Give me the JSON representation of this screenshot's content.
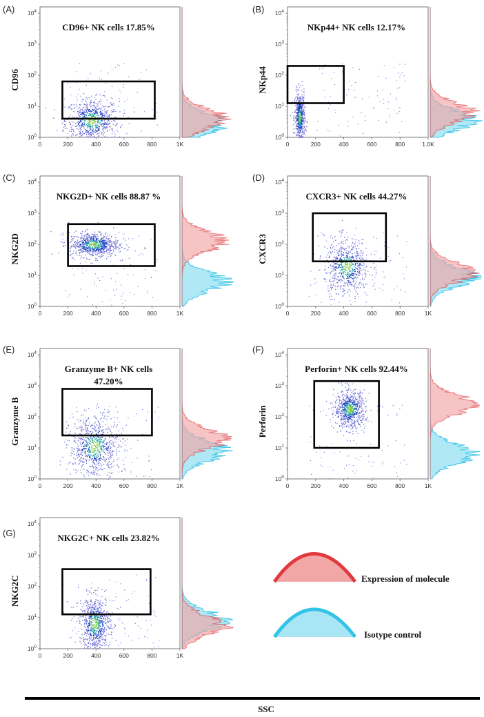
{
  "chart_data": [
    {
      "type": "scatter",
      "panel": "(A)",
      "ylabel": "CD96",
      "gate_label": "CD96+  NK cells 17.85%",
      "percent_positive": 17.85,
      "x_ticks": [
        "0",
        "200",
        "400",
        "600",
        "800",
        "1K"
      ],
      "y_ticks": [
        0,
        1,
        2,
        3,
        4
      ],
      "xlim": [
        0,
        1000
      ],
      "ylim_log10": [
        0,
        4.2
      ],
      "gate": {
        "x": [
          160,
          820
        ],
        "y_log10": [
          0.6,
          1.8
        ]
      },
      "cluster": {
        "x_center": 370,
        "x_spread": 95,
        "y_center_log10": 0.55,
        "y_spread": 0.35,
        "n": 700
      },
      "histogram": {
        "expression_peak_log10": 0.6,
        "isotype_peak_log10": 0.45
      }
    },
    {
      "type": "scatter",
      "panel": "(B)",
      "ylabel": "NKp44",
      "gate_label": "NKp44+ NK cells 12.17%",
      "percent_positive": 12.17,
      "x_ticks": [
        "0",
        "200",
        "400",
        "600",
        "800",
        "1.0K"
      ],
      "y_ticks": [
        0,
        1,
        2,
        3,
        4
      ],
      "xlim": [
        0,
        1000
      ],
      "ylim_log10": [
        0,
        4.2
      ],
      "gate": {
        "x": [
          0,
          400
        ],
        "y_log10": [
          1.1,
          2.3
        ]
      },
      "cluster": {
        "x_center": 85,
        "x_spread": 18,
        "y_center_log10": 0.65,
        "y_spread": 0.4,
        "n": 600
      },
      "histogram": {
        "expression_peak_log10": 0.8,
        "isotype_peak_log10": 0.55
      }
    },
    {
      "type": "scatter",
      "panel": "(C)",
      "ylabel": "NKG2D",
      "gate_label": "NKG2D+ NK cells  88.87 %",
      "percent_positive": 88.87,
      "x_ticks": [
        "0",
        "200",
        "400",
        "600",
        "800",
        "1K"
      ],
      "y_ticks": [
        0,
        1,
        2,
        3,
        4
      ],
      "xlim": [
        0,
        1000
      ],
      "ylim_log10": [
        0,
        4.2
      ],
      "gate": {
        "x": [
          200,
          820
        ],
        "y_log10": [
          1.3,
          2.65
        ]
      },
      "cluster": {
        "x_center": 380,
        "x_spread": 90,
        "y_center_log10": 2.0,
        "y_spread": 0.2,
        "n": 750
      },
      "histogram": {
        "expression_peak_log10": 2.1,
        "isotype_peak_log10": 0.8
      }
    },
    {
      "type": "scatter",
      "panel": "(D)",
      "ylabel": "CXCR3",
      "gate_label": "CXCR3+ NK cells 44.27%",
      "percent_positive": 44.27,
      "x_ticks": [
        "0",
        "200",
        "400",
        "600",
        "800",
        "1K"
      ],
      "y_ticks": [
        0,
        1,
        2,
        3,
        4
      ],
      "xlim": [
        0,
        1000
      ],
      "ylim_log10": [
        0,
        4.2
      ],
      "gate": {
        "x": [
          180,
          700
        ],
        "y_log10": [
          1.45,
          3.0
        ]
      },
      "cluster": {
        "x_center": 420,
        "x_spread": 80,
        "y_center_log10": 1.3,
        "y_spread": 0.45,
        "n": 650
      },
      "histogram": {
        "expression_peak_log10": 1.1,
        "isotype_peak_log10": 0.95
      }
    },
    {
      "type": "scatter",
      "panel": "(E)",
      "ylabel": "Granzyme B",
      "gate_label": "Granzyme B+  NK cells",
      "gate_label_line2": "47.20%",
      "percent_positive": 47.2,
      "x_ticks": [
        "0",
        "200",
        "400",
        "600",
        "800",
        "1K"
      ],
      "y_ticks": [
        0,
        1,
        2,
        3,
        4
      ],
      "xlim": [
        0,
        1000
      ],
      "ylim_log10": [
        0,
        4.2
      ],
      "gate": {
        "x": [
          160,
          800
        ],
        "y_log10": [
          1.4,
          2.9
        ]
      },
      "cluster": {
        "x_center": 390,
        "x_spread": 90,
        "y_center_log10": 1.05,
        "y_spread": 0.5,
        "n": 750
      },
      "histogram": {
        "expression_peak_log10": 1.3,
        "isotype_peak_log10": 0.9
      }
    },
    {
      "type": "scatter",
      "panel": "(F)",
      "ylabel": "Perforin",
      "gate_label": "Perforin+ NK cells 92.44%",
      "percent_positive": 92.44,
      "x_ticks": [
        "0",
        "200",
        "400",
        "600",
        "800",
        "1K"
      ],
      "y_ticks": [
        0,
        1,
        2,
        3,
        4
      ],
      "xlim": [
        0,
        1000
      ],
      "ylim_log10": [
        0,
        4.2
      ],
      "gate": {
        "x": [
          190,
          650
        ],
        "y_log10": [
          1.0,
          3.15
        ]
      },
      "cluster": {
        "x_center": 440,
        "x_spread": 55,
        "y_center_log10": 2.25,
        "y_spread": 0.3,
        "n": 700
      },
      "histogram": {
        "expression_peak_log10": 2.4,
        "isotype_peak_log10": 0.8
      }
    },
    {
      "type": "scatter",
      "panel": "(G)",
      "ylabel": "NKG2C",
      "gate_label": "NKG2C+ NK cells 23.82%",
      "percent_positive": 23.82,
      "x_ticks": [
        "0",
        "200",
        "400",
        "600",
        "800",
        "1K"
      ],
      "y_ticks": [
        0,
        1,
        2,
        3,
        4
      ],
      "xlim": [
        0,
        1000
      ],
      "ylim_log10": [
        0,
        4.2
      ],
      "gate": {
        "x": [
          160,
          790
        ],
        "y_log10": [
          1.1,
          2.55
        ]
      },
      "cluster": {
        "x_center": 390,
        "x_spread": 55,
        "y_center_log10": 0.8,
        "y_spread": 0.45,
        "n": 700
      },
      "histogram": {
        "expression_peak_log10": 0.75,
        "isotype_peak_log10": 0.9
      }
    }
  ],
  "legend": {
    "expression_label": "Expression of molecule",
    "isotype_label": "Isotype control",
    "expression_color": "#e0393e",
    "isotype_color": "#33c3e6"
  },
  "x_axis_title": "SSC",
  "colors": {
    "gate": "#000000",
    "expression_fill": "#f2a6a6",
    "isotype_fill": "#a9e6f5",
    "overlap_fill": "#8aa5b5"
  }
}
